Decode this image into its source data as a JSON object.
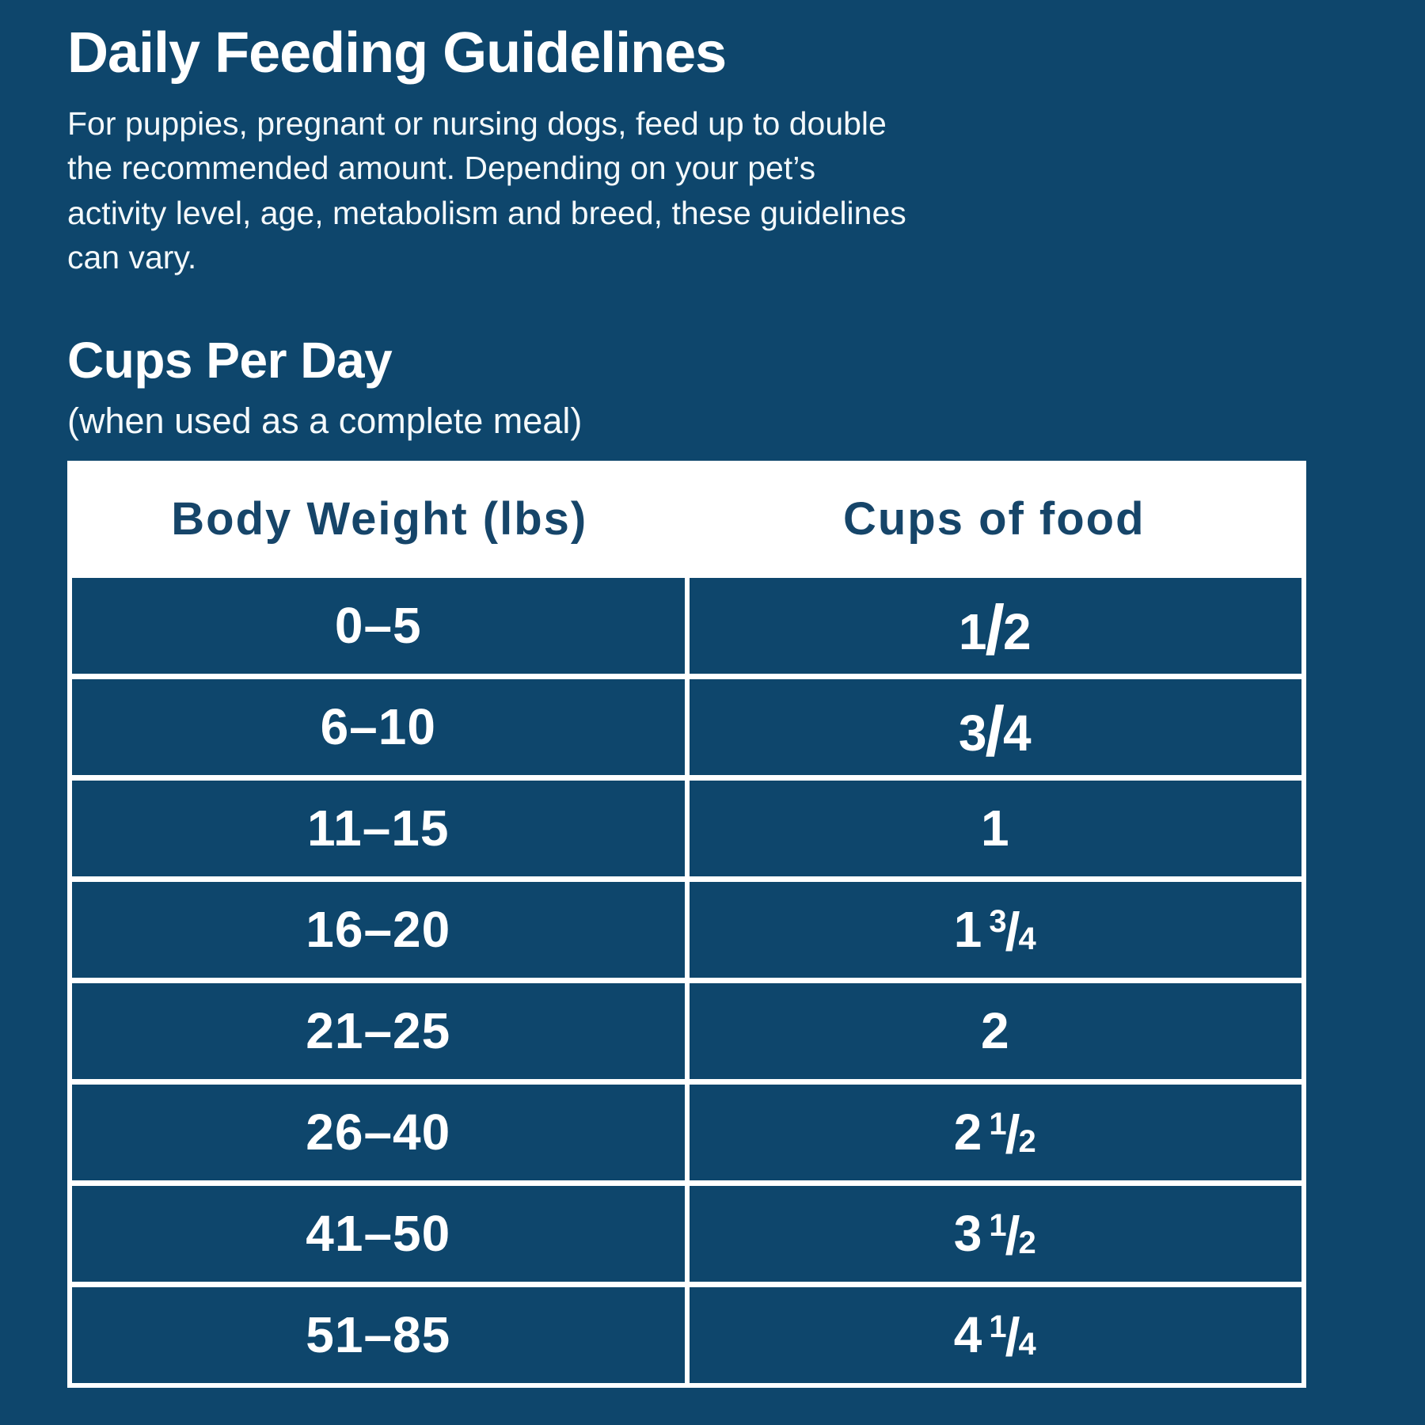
{
  "colors": {
    "background": "#0E466C",
    "cell": "#0E466C",
    "header_text": "#164569",
    "table_background": "#FFFFFF",
    "text": "#FFFFFF"
  },
  "header": {
    "title": "Daily Feeding Guidelines",
    "intro_lines": [
      "For puppies, pregnant or nursing dogs, feed up to double",
      "the recommended amount. Depending on your pet’s",
      "activity level, age, metabolism and breed, these guidelines",
      "can vary."
    ]
  },
  "section": {
    "title": "Cups Per Day",
    "subtitle": "(when used as a complete meal)"
  },
  "table": {
    "columns": [
      "Body Weight (lbs)",
      "Cups of food"
    ],
    "rows": [
      {
        "weight": "0–5",
        "cups": {
          "whole": "",
          "num": "1",
          "den": "2"
        }
      },
      {
        "weight": "6–10",
        "cups": {
          "whole": "",
          "num": "3",
          "den": "4"
        }
      },
      {
        "weight": "11–15",
        "cups": {
          "whole": "1",
          "num": "",
          "den": ""
        }
      },
      {
        "weight": "16–20",
        "cups": {
          "whole": "1",
          "num": "3",
          "den": "4"
        }
      },
      {
        "weight": "21–25",
        "cups": {
          "whole": "2",
          "num": "",
          "den": ""
        }
      },
      {
        "weight": "26–40",
        "cups": {
          "whole": "2",
          "num": "1",
          "den": "2"
        }
      },
      {
        "weight": "41–50",
        "cups": {
          "whole": "3",
          "num": "1",
          "den": "2"
        }
      },
      {
        "weight": "51–85",
        "cups": {
          "whole": "4",
          "num": "1",
          "den": "4"
        }
      }
    ]
  }
}
